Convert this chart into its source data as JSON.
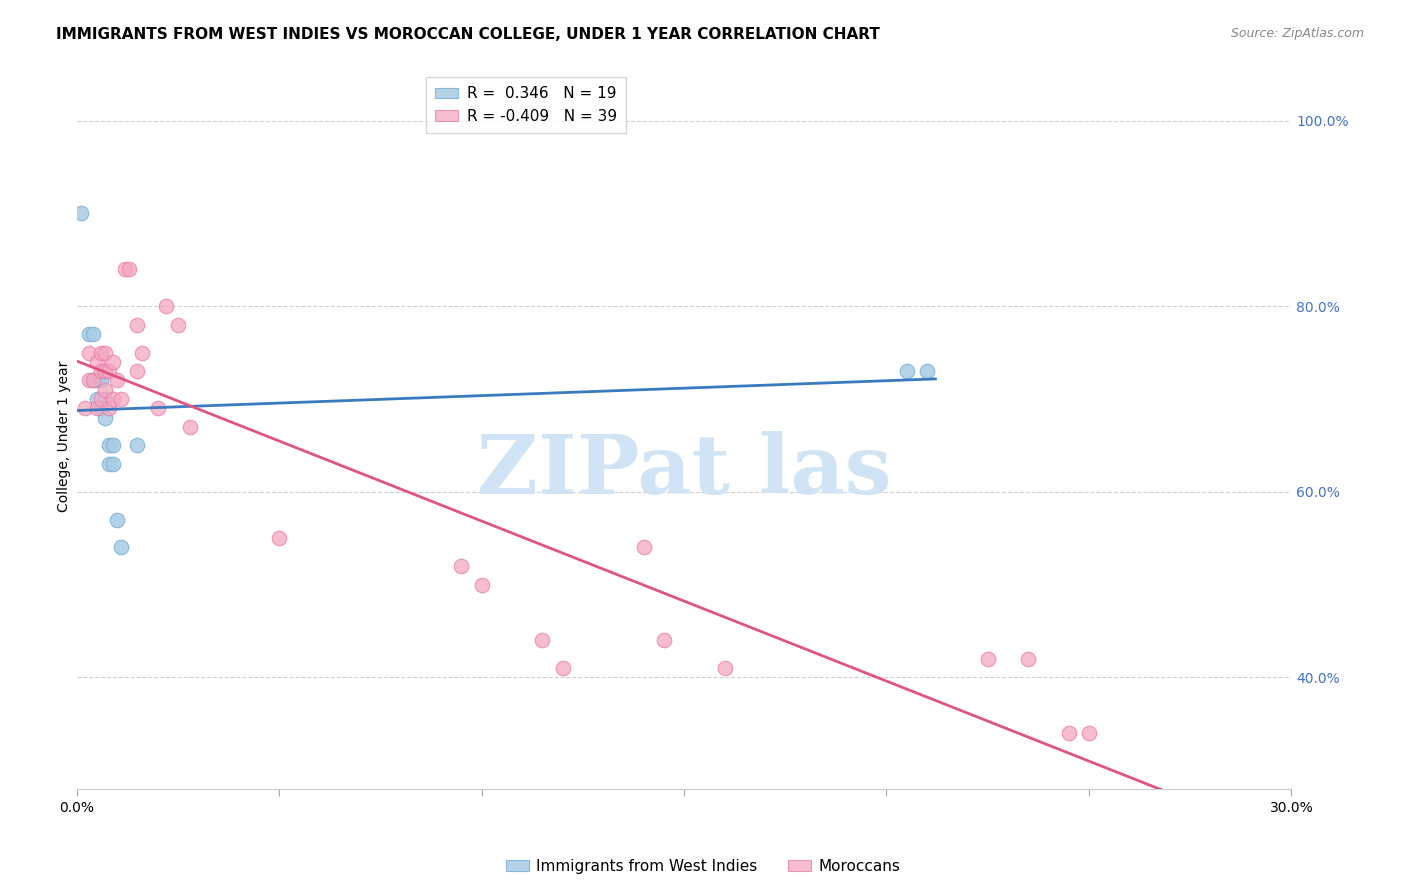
{
  "title": "IMMIGRANTS FROM WEST INDIES VS MOROCCAN COLLEGE, UNDER 1 YEAR CORRELATION CHART",
  "source": "Source: ZipAtlas.com",
  "ylabel": "College, Under 1 year",
  "xlim": [
    0.0,
    0.3
  ],
  "ylim": [
    0.28,
    1.04
  ],
  "right_yticks": [
    0.4,
    0.6,
    0.8,
    1.0
  ],
  "right_yticklabels": [
    "40.0%",
    "60.0%",
    "80.0%",
    "100.0%"
  ],
  "xticks": [
    0.0,
    0.05,
    0.1,
    0.15,
    0.2,
    0.25,
    0.3
  ],
  "xticklabels": [
    "0.0%",
    "",
    "",
    "",
    "",
    "",
    "30.0%"
  ],
  "legend_r_blue": "0.346",
  "legend_n_blue": "19",
  "legend_r_pink": "-0.409",
  "legend_n_pink": "39",
  "blue_label": "Immigrants from West Indies",
  "pink_label": "Moroccans",
  "blue_color": "#a8cce4",
  "pink_color": "#f4a7c0",
  "blue_edge_color": "#7ab0d4",
  "pink_edge_color": "#e87aaa",
  "blue_line_color": "#3a7abf",
  "pink_line_color": "#e05580",
  "watermark_text": "ZIPat las",
  "blue_x": [
    0.001,
    0.003,
    0.004,
    0.004,
    0.005,
    0.005,
    0.006,
    0.006,
    0.007,
    0.007,
    0.008,
    0.008,
    0.009,
    0.009,
    0.01,
    0.011,
    0.015,
    0.205,
    0.21
  ],
  "blue_y": [
    0.9,
    0.77,
    0.77,
    0.72,
    0.7,
    0.72,
    0.69,
    0.72,
    0.68,
    0.7,
    0.63,
    0.65,
    0.63,
    0.65,
    0.57,
    0.54,
    0.65,
    0.73,
    0.73
  ],
  "pink_x": [
    0.002,
    0.003,
    0.003,
    0.004,
    0.005,
    0.005,
    0.006,
    0.006,
    0.006,
    0.007,
    0.007,
    0.007,
    0.008,
    0.008,
    0.009,
    0.009,
    0.01,
    0.011,
    0.012,
    0.013,
    0.015,
    0.015,
    0.016,
    0.02,
    0.022,
    0.025,
    0.028,
    0.05,
    0.095,
    0.1,
    0.115,
    0.12,
    0.14,
    0.145,
    0.16,
    0.225,
    0.235,
    0.245,
    0.25
  ],
  "pink_y": [
    0.69,
    0.72,
    0.75,
    0.72,
    0.69,
    0.74,
    0.7,
    0.73,
    0.75,
    0.71,
    0.73,
    0.75,
    0.69,
    0.73,
    0.7,
    0.74,
    0.72,
    0.7,
    0.84,
    0.84,
    0.73,
    0.78,
    0.75,
    0.69,
    0.8,
    0.78,
    0.67,
    0.55,
    0.52,
    0.5,
    0.44,
    0.41,
    0.54,
    0.44,
    0.41,
    0.42,
    0.42,
    0.34,
    0.34
  ],
  "title_fontsize": 11,
  "axis_label_fontsize": 10,
  "tick_fontsize": 10,
  "right_tick_color": "#4472c4",
  "watermark_color": "#d0e4f5",
  "watermark_fontsize": 60,
  "dot_size": 110
}
